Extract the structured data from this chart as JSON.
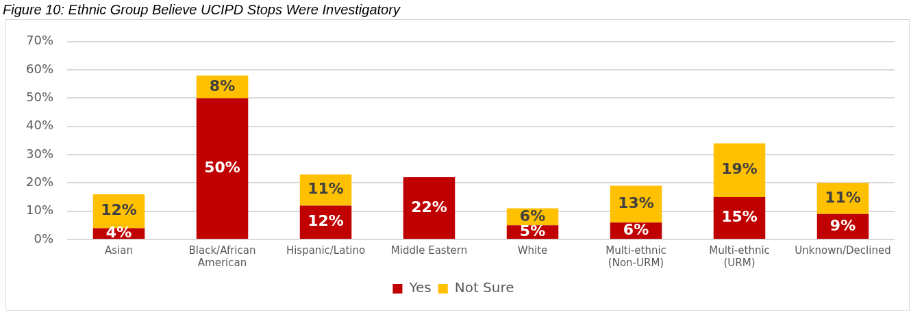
{
  "chart_data": {
    "type": "bar",
    "title": "Figure 10: Ethnic Group Believe UCIPD Stops Were Investigatory",
    "stacked": true,
    "categories": [
      "Asian",
      "Black/African American",
      "Hispanic/Latino",
      "Middle Eastern",
      "White",
      "Multi-ethnic (Non-URM)",
      "Multi-ethnic (URM)",
      "Unknown/Declined"
    ],
    "series": [
      {
        "name": "Yes",
        "color": "#c00000",
        "values": [
          4,
          50,
          12,
          22,
          5,
          6,
          15,
          9
        ],
        "value_labels": [
          "4%",
          "50%",
          "12%",
          "22%",
          "5%",
          "6%",
          "15%",
          "9%"
        ]
      },
      {
        "name": "Not Sure",
        "color": "#ffc000",
        "values": [
          12,
          8,
          11,
          null,
          6,
          13,
          19,
          11
        ],
        "value_labels": [
          "12%",
          "8%",
          "11%",
          null,
          "6%",
          "13%",
          "19%",
          "11%"
        ]
      }
    ],
    "ylim": [
      0,
      70
    ],
    "yticks": [
      {
        "value": 0,
        "label": "0%"
      },
      {
        "value": 10,
        "label": "10%"
      },
      {
        "value": 20,
        "label": "20%"
      },
      {
        "value": 30,
        "label": "30%"
      },
      {
        "value": 40,
        "label": "40%"
      },
      {
        "value": 50,
        "label": "50%"
      },
      {
        "value": 60,
        "label": "60%"
      },
      {
        "value": 70,
        "label": "70%"
      }
    ],
    "grid": "y",
    "legend": "bottom"
  }
}
